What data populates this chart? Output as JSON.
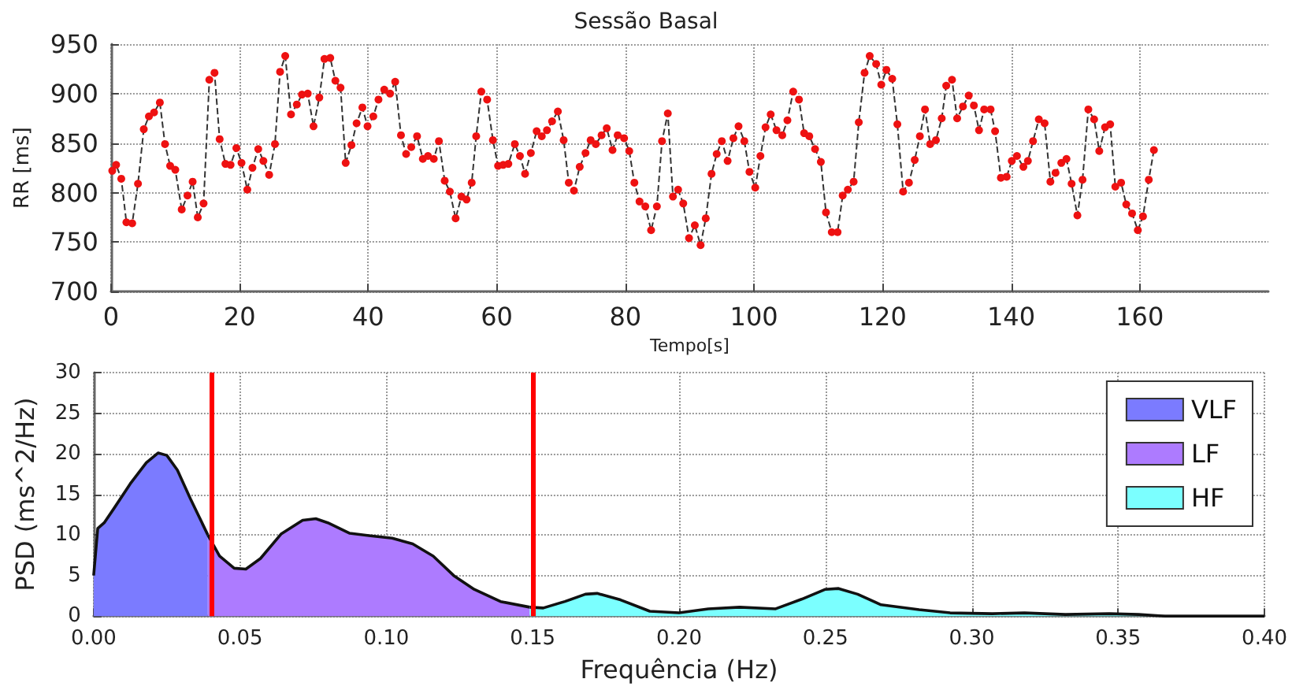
{
  "chart_data": [
    {
      "type": "line",
      "title": "Sessão Basal",
      "xlabel": "Tempo[s]",
      "ylabel": "RR [ms]",
      "xlim": [
        0,
        180
      ],
      "xticks": [
        0,
        20,
        40,
        60,
        80,
        100,
        120,
        140,
        160
      ],
      "ylim": [
        700,
        950
      ],
      "yticks": [
        700,
        750,
        800,
        850,
        900,
        950
      ],
      "grid": true,
      "legend": false,
      "marker": "circle",
      "line_style": "dashed",
      "series": [
        {
          "color": "#ee1111",
          "x": [
            0.2,
            0.8,
            1.6,
            2.4,
            3.3,
            4.2,
            5.1,
            5.9,
            6.7,
            7.6,
            8.4,
            9.2,
            10.0,
            11.0,
            11.9,
            12.7,
            13.5,
            14.4,
            15.3,
            16.1,
            16.9,
            17.8,
            18.6,
            19.5,
            20.3,
            21.2,
            22.0,
            22.9,
            23.7,
            24.6,
            25.5,
            26.3,
            27.1,
            28.0,
            28.9,
            29.7,
            30.6,
            31.5,
            32.4,
            33.2,
            34.1,
            34.9,
            35.7,
            36.5,
            37.4,
            38.2,
            39.1,
            39.9,
            40.8,
            41.6,
            42.5,
            43.4,
            44.2,
            45.1,
            45.9,
            46.7,
            47.6,
            48.5,
            49.3,
            50.2,
            51.0,
            51.9,
            52.7,
            53.6,
            54.5,
            55.3,
            56.1,
            56.8,
            57.6,
            58.5,
            59.4,
            60.2,
            61.0,
            61.8,
            62.8,
            63.6,
            64.4,
            65.3,
            66.2,
            67.0,
            67.8,
            68.6,
            69.5,
            70.4,
            71.2,
            72.0,
            72.9,
            73.8,
            74.6,
            75.4,
            76.3,
            77.1,
            78.0,
            78.8,
            79.8,
            80.6,
            81.4,
            82.2,
            83.1,
            84.0,
            84.9,
            85.7,
            86.6,
            87.4,
            88.2,
            89.0,
            89.9,
            90.8,
            91.7,
            92.5,
            93.4,
            94.2,
            95.0,
            95.9,
            96.8,
            97.6,
            98.5,
            99.3,
            100.2,
            101.0,
            101.8,
            102.6,
            103.5,
            104.4,
            105.2,
            106.1,
            107.0,
            107.8,
            108.6,
            109.5,
            110.4,
            111.2,
            112.1,
            113.0,
            113.8,
            114.6,
            115.5,
            116.3,
            117.2,
            118.0,
            119.0,
            119.8,
            120.6,
            121.5,
            122.3,
            123.2,
            124.1,
            125.0,
            125.8,
            126.6,
            127.4,
            128.3,
            129.2,
            129.9,
            130.8,
            131.6,
            132.5,
            133.4,
            134.2,
            135.0,
            135.8,
            136.8,
            137.5,
            138.4,
            139.3,
            140.1,
            140.9,
            141.9,
            142.6,
            143.4,
            144.3,
            145.2,
            146.1,
            146.9,
            147.8,
            148.6,
            149.4,
            150.3,
            151.1,
            152.0,
            152.9,
            153.7,
            154.6,
            155.4,
            156.2,
            157.1,
            157.9,
            158.8,
            159.7,
            160.5,
            161.4,
            162.2
          ],
          "values": [
            822,
            828,
            814,
            770,
            769,
            809,
            864,
            877,
            881,
            891,
            849,
            827,
            823,
            783,
            797,
            811,
            775,
            789,
            914,
            921,
            854,
            829,
            828,
            845,
            830,
            803,
            825,
            844,
            832,
            818,
            849,
            922,
            938,
            879,
            889,
            899,
            900,
            867,
            896,
            935,
            936,
            913,
            906,
            830,
            848,
            870,
            886,
            867,
            877,
            894,
            904,
            900,
            912,
            858,
            839,
            846,
            857,
            834,
            837,
            834,
            852,
            812,
            801,
            774,
            796,
            793,
            810,
            857,
            902,
            894,
            853,
            827,
            828,
            829,
            849,
            837,
            819,
            840,
            862,
            857,
            863,
            872,
            882,
            853,
            810,
            802,
            826,
            840,
            853,
            849,
            858,
            865,
            843,
            858,
            855,
            842,
            810,
            791,
            786,
            762,
            786,
            852,
            880,
            796,
            803,
            789,
            754,
            767,
            747,
            774,
            819,
            839,
            852,
            832,
            855,
            867,
            852,
            821,
            805,
            837,
            866,
            879,
            863,
            858,
            873,
            902,
            894,
            860,
            857,
            844,
            831,
            780,
            760,
            760,
            797,
            803,
            811,
            871,
            921,
            938,
            930,
            909,
            924,
            915,
            869,
            801,
            810,
            833,
            857,
            884,
            849,
            853,
            875,
            908,
            914,
            875,
            887,
            898,
            888,
            863,
            884,
            884,
            862,
            815,
            816,
            832,
            837,
            826,
            832,
            852,
            874,
            870,
            811,
            820,
            830,
            834,
            809,
            777,
            813,
            884,
            874,
            842,
            866,
            869,
            806,
            810,
            788,
            779,
            762,
            776,
            813,
            843
          ]
        }
      ]
    },
    {
      "type": "area",
      "xlabel": "Frequência (Hz)",
      "ylabel": "PSD (ms^2/Hz)",
      "xlim": [
        0,
        0.4
      ],
      "xticks": [
        {
          "value": 0,
          "label": "0.00"
        },
        {
          "value": 0.05,
          "label": "0.05"
        },
        {
          "value": 0.1,
          "label": "0.10"
        },
        {
          "value": 0.15,
          "label": "0.15"
        },
        {
          "value": 0.2,
          "label": "0.20"
        },
        {
          "value": 0.25,
          "label": "0.25"
        },
        {
          "value": 0.3,
          "label": "0.30"
        },
        {
          "value": 0.35,
          "label": "0.35"
        },
        {
          "value": 0.4,
          "label": "0.40"
        }
      ],
      "ylim": [
        0,
        30
      ],
      "yticks": [
        0,
        5,
        10,
        15,
        20,
        25,
        30
      ],
      "grid": true,
      "legend": "top right",
      "line_style": "solid",
      "ref_lines": [
        {
          "axis": "x",
          "value": 0.039,
          "color": "#ff0000"
        },
        {
          "axis": "x",
          "value": 0.149,
          "color": "#ff0000"
        }
      ],
      "series": [
        {
          "name": "VLF",
          "color": "#7b7bff",
          "x": [
            0,
            0.0014,
            0.0036,
            0.007,
            0.0125,
            0.018,
            0.022,
            0.025,
            0.0286,
            0.033,
            0.039
          ],
          "values": [
            5.0,
            10.8,
            11.5,
            13.3,
            16.3,
            18.9,
            20.1,
            19.8,
            18.0,
            14.5,
            10.0
          ]
        },
        {
          "name": "LF",
          "color": "#ad7bff",
          "x": [
            0.039,
            0.043,
            0.048,
            0.052,
            0.057,
            0.064,
            0.0714,
            0.0759,
            0.08,
            0.0875,
            0.0946,
            0.102,
            0.109,
            0.116,
            0.123,
            0.13,
            0.139,
            0.149
          ],
          "values": [
            10.0,
            7.4,
            5.9,
            5.8,
            7.1,
            10.1,
            11.8,
            12.0,
            11.5,
            10.2,
            9.9,
            9.6,
            8.9,
            7.4,
            5.0,
            3.3,
            1.8,
            1.1
          ]
        },
        {
          "name": "HF",
          "color": "#7bffff",
          "x": [
            0.149,
            0.1536,
            0.161,
            0.168,
            0.172,
            0.18,
            0.19,
            0.2,
            0.21,
            0.2207,
            0.233,
            0.242,
            0.25,
            0.2545,
            0.261,
            0.269,
            0.282,
            0.2926,
            0.307,
            0.318,
            0.332,
            0.347,
            0.357,
            0.366,
            0.4
          ],
          "values": [
            1.1,
            1.0,
            1.8,
            2.7,
            2.8,
            2.0,
            0.6,
            0.4,
            0.9,
            1.1,
            0.9,
            2.1,
            3.3,
            3.4,
            2.7,
            1.4,
            0.8,
            0.4,
            0.3,
            0.4,
            0.2,
            0.3,
            0.2,
            0.0,
            0.0
          ]
        }
      ]
    }
  ]
}
